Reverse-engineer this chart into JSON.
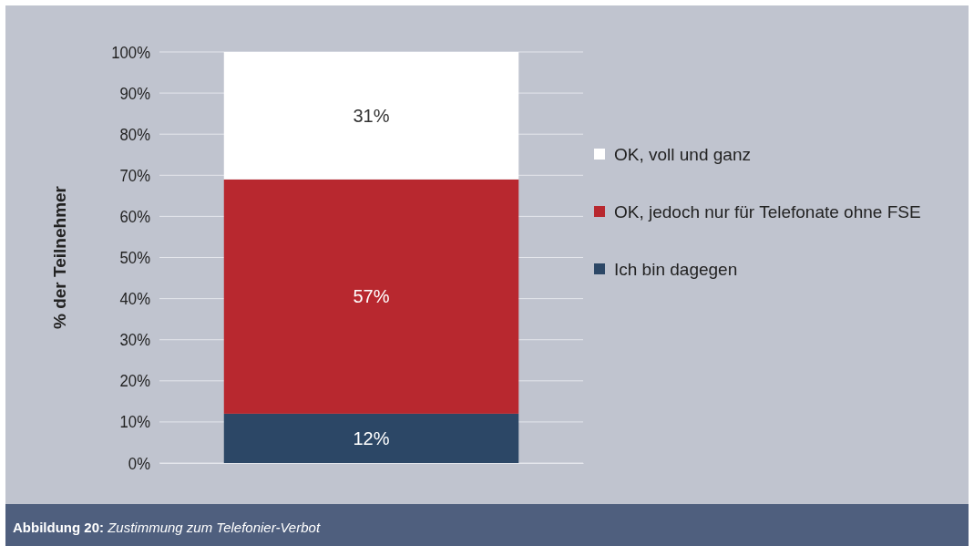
{
  "chart_data": {
    "type": "bar",
    "title": "Zustimmung zum Telefonier-Verbot",
    "annotations": [
      "Abbildung 20:"
    ],
    "ylabel": "% der Teilnehmer",
    "categories": [
      null
    ],
    "stacked": true,
    "legend": "right",
    "grid": "y",
    "ylim": [
      0,
      100
    ],
    "yticks": [
      {
        "value": 0,
        "label": "0%"
      },
      {
        "value": 10,
        "label": "10%"
      },
      {
        "value": 20,
        "label": "20%"
      },
      {
        "value": 30,
        "label": "30%"
      },
      {
        "value": 40,
        "label": "40%"
      },
      {
        "value": 50,
        "label": "50%"
      },
      {
        "value": 60,
        "label": "60%"
      },
      {
        "value": 70,
        "label": "70%"
      },
      {
        "value": 80,
        "label": "80%"
      },
      {
        "value": 90,
        "label": "90%"
      },
      {
        "value": 100,
        "label": "100%"
      }
    ],
    "series": [
      {
        "name": "Ich bin dagegen",
        "color": "#2c4766",
        "values": [
          12
        ],
        "value_labels": [
          "12%"
        ]
      },
      {
        "name": "OK, jedoch nur für Telefonate ohne FSE",
        "color": "#b8282f",
        "values": [
          57
        ],
        "value_labels": [
          "57%"
        ]
      },
      {
        "name": "OK, voll und ganz",
        "color": "#ffffff",
        "values": [
          31
        ],
        "value_labels": [
          "31%"
        ]
      }
    ]
  }
}
